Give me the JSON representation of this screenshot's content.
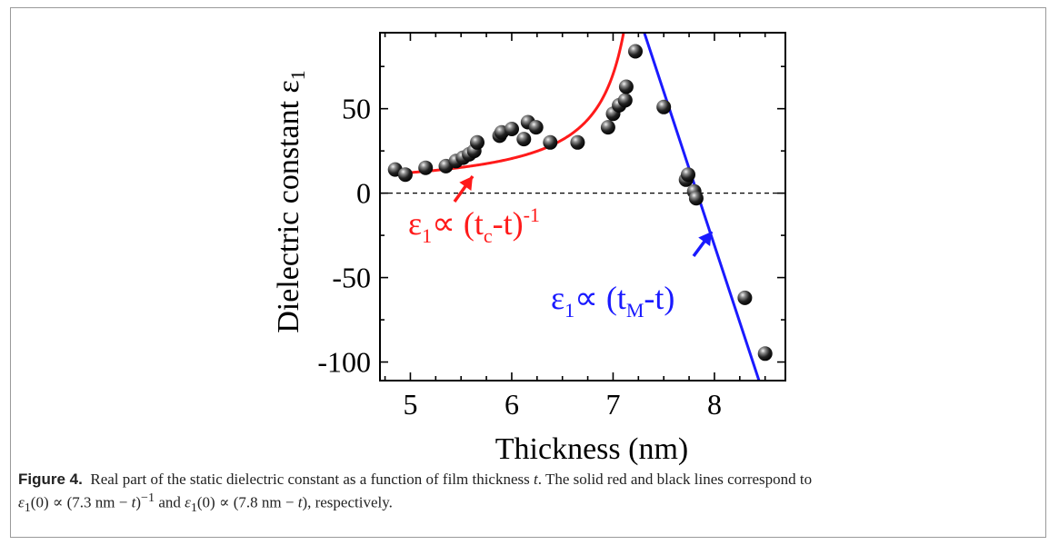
{
  "chart_data": {
    "type": "scatter",
    "xlabel": "Thickness (nm)",
    "ylabel": "Dielectric constant ε",
    "ylabel_sub": "1",
    "xlim": [
      4.7,
      8.7
    ],
    "ylim": [
      -111,
      95
    ],
    "xticks": [
      5,
      6,
      7,
      8
    ],
    "yticks": [
      50,
      0,
      -50,
      -100
    ],
    "xtick_labels": [
      "5",
      "6",
      "7",
      "8"
    ],
    "ytick_labels": [
      "50",
      "0",
      "-50",
      "-100"
    ],
    "grid": false,
    "zero_line": true,
    "points": [
      {
        "x": 4.85,
        "y": 14
      },
      {
        "x": 4.95,
        "y": 11
      },
      {
        "x": 5.15,
        "y": 15
      },
      {
        "x": 5.35,
        "y": 16
      },
      {
        "x": 5.45,
        "y": 19
      },
      {
        "x": 5.52,
        "y": 21
      },
      {
        "x": 5.58,
        "y": 23
      },
      {
        "x": 5.63,
        "y": 25
      },
      {
        "x": 5.66,
        "y": 30
      },
      {
        "x": 5.88,
        "y": 34
      },
      {
        "x": 5.9,
        "y": 36
      },
      {
        "x": 6.0,
        "y": 38
      },
      {
        "x": 6.12,
        "y": 32
      },
      {
        "x": 6.16,
        "y": 42
      },
      {
        "x": 6.24,
        "y": 39
      },
      {
        "x": 6.38,
        "y": 30
      },
      {
        "x": 6.65,
        "y": 30
      },
      {
        "x": 6.95,
        "y": 39
      },
      {
        "x": 7.0,
        "y": 47
      },
      {
        "x": 7.06,
        "y": 52
      },
      {
        "x": 7.12,
        "y": 55
      },
      {
        "x": 7.13,
        "y": 63
      },
      {
        "x": 7.22,
        "y": 84
      },
      {
        "x": 7.5,
        "y": 51
      },
      {
        "x": 7.72,
        "y": 8
      },
      {
        "x": 7.74,
        "y": 11
      },
      {
        "x": 7.8,
        "y": 1
      },
      {
        "x": 7.82,
        "y": -3
      },
      {
        "x": 8.3,
        "y": -62
      },
      {
        "x": 8.5,
        "y": -95
      }
    ],
    "series": [
      {
        "color": "#ff1a1a",
        "formula_parts": [
          "ε",
          "1",
          "∝ (t",
          "c",
          "-t)",
          "-1"
        ]
      },
      {
        "color": "#1a1aff",
        "formula_parts": [
          "ε",
          "1",
          "∝ (t",
          "M",
          "-t)"
        ]
      }
    ],
    "colors": {
      "red": "#ff1a1a",
      "blue": "#1a1aff",
      "points": "#111111"
    }
  },
  "caption": {
    "label": "Figure 4.",
    "text_line1": "Real part of the static dielectric constant as a function of film thickness",
    "t_symbol": "t",
    "text_line1_end": ". The solid red and black lines correspond to",
    "eps_a": "ε",
    "sub_a": "1",
    "zero_a": "(0) ∝ (7.3 nm − ",
    "t_a": "t",
    "close_a": ")",
    "sup_a": "−1",
    "and_text": " and ",
    "eps_b": "ε",
    "sub_b": "1",
    "zero_b": "(0) ∝ (7.8 nm − ",
    "t_b": "t",
    "close_b": "), respectively."
  }
}
